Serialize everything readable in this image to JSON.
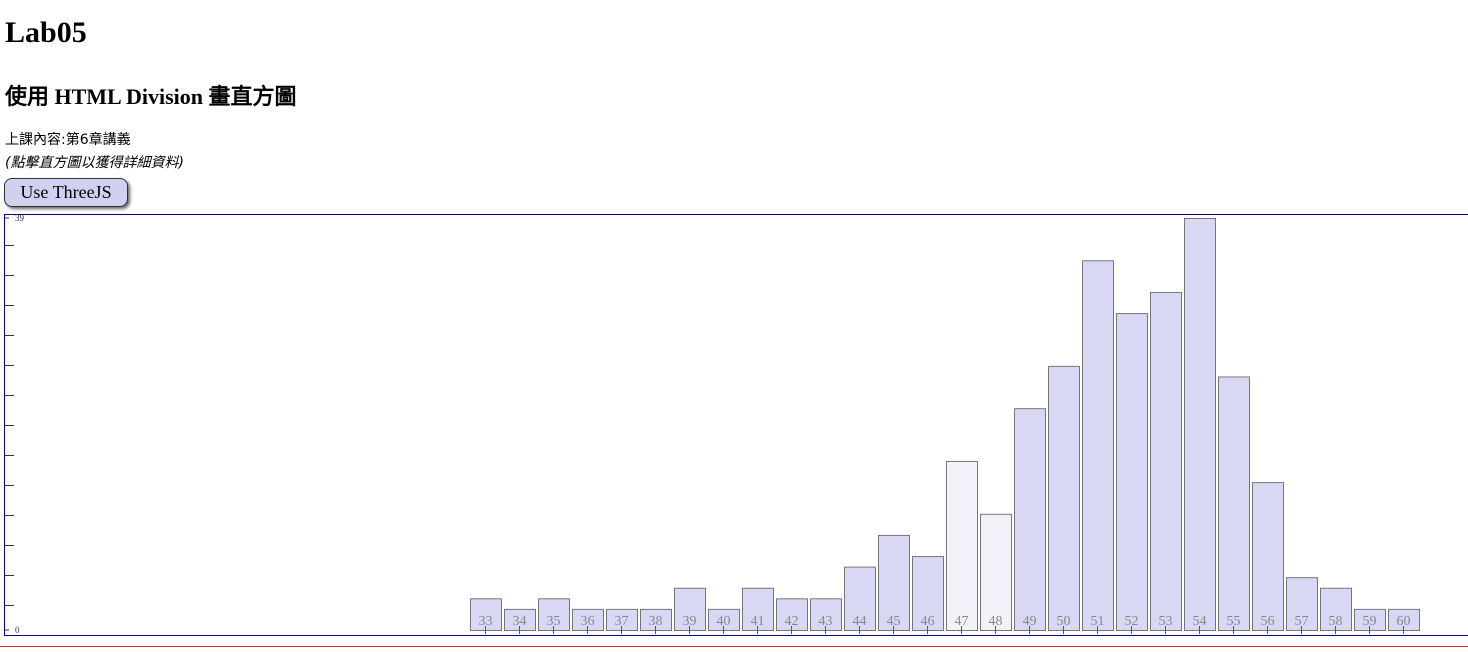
{
  "header": {
    "title": "Lab05",
    "subtitle": "使用 HTML Division 畫直方圖",
    "content": "上課內容:第6章講義",
    "hint": "(點擊直方圖以獲得詳細資料)",
    "button": "Use ThreeJS"
  },
  "chart_data": {
    "type": "bar",
    "categories": [
      33,
      34,
      35,
      36,
      37,
      38,
      39,
      40,
      41,
      42,
      43,
      44,
      45,
      46,
      47,
      48,
      49,
      50,
      51,
      52,
      53,
      54,
      55,
      56,
      57,
      58,
      59,
      60
    ],
    "values": [
      3,
      2,
      3,
      2,
      2,
      2,
      4,
      2,
      4,
      3,
      3,
      6,
      9,
      7,
      16,
      11,
      21,
      25,
      35,
      30,
      32,
      39,
      24,
      14,
      5,
      4,
      2,
      2
    ],
    "colors": [
      "#d8d8f4",
      "#d8d8f4",
      "#d8d8f4",
      "#d8d8f4",
      "#d8d8f4",
      "#d8d8f4",
      "#d8d8f4",
      "#d8d8f4",
      "#d8d8f4",
      "#d8d8f4",
      "#d8d8f4",
      "#d8d8f4",
      "#d8d8f4",
      "#d8d8f4",
      "#f2f2fa",
      "#f2f2fa",
      "#d8d8f4",
      "#d8d8f4",
      "#d8d8f4",
      "#d8d8f4",
      "#d8d8f4",
      "#d8d8f4",
      "#d8d8f4",
      "#d8d8f4",
      "#d8d8f4",
      "#d8d8f4",
      "#d8d8f4",
      "#d8d8f4"
    ],
    "ylim": [
      0,
      39
    ],
    "yticks": [
      0,
      39
    ]
  }
}
